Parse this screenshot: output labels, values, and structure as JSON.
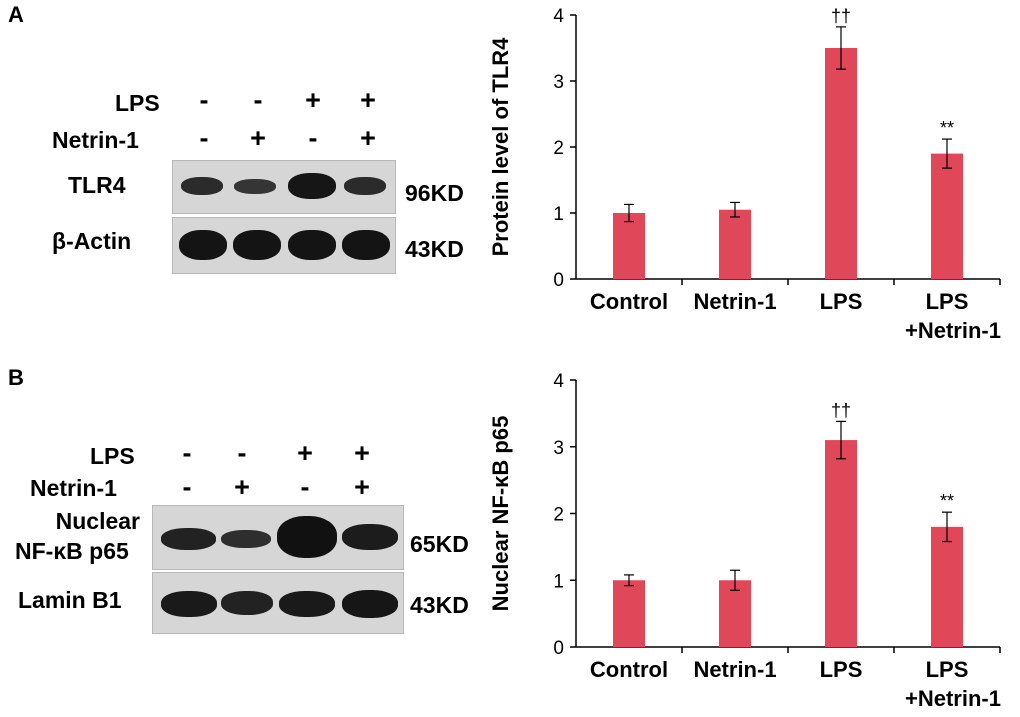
{
  "panels": [
    {
      "letter": "A",
      "treatments": [
        {
          "label": "LPS",
          "marks": [
            "-",
            "-",
            "+",
            "+"
          ]
        },
        {
          "label": "Netrin-1",
          "marks": [
            "-",
            "+",
            "-",
            "+"
          ]
        }
      ],
      "blots": [
        {
          "label": "TLR4",
          "size": "96KD"
        },
        {
          "label": "β-Actin",
          "size": "43KD"
        }
      ]
    },
    {
      "letter": "B",
      "treatments": [
        {
          "label": "LPS",
          "marks": [
            "-",
            "-",
            "+",
            "+"
          ]
        },
        {
          "label": "Netrin-1",
          "marks": [
            "-",
            "+",
            "-",
            "+"
          ]
        }
      ],
      "blots": [
        {
          "label": "Nuclear",
          "label2": "NF-κB p65",
          "size": "65KD"
        },
        {
          "label": "Lamin B1",
          "size": "43KD"
        }
      ]
    }
  ],
  "chart_data": [
    {
      "type": "bar",
      "categories": [
        "Control",
        "Netrin-1",
        "LPS",
        "LPS\n+Netrin-1"
      ],
      "values": [
        1.0,
        1.05,
        3.5,
        1.9
      ],
      "errors": [
        0.13,
        0.11,
        0.32,
        0.22
      ],
      "annotations": [
        "",
        "",
        "††",
        "**"
      ],
      "ylabel": "Protein level of TLR4",
      "ylim": [
        0,
        4
      ],
      "yticks": [
        0,
        1,
        2,
        3,
        4
      ],
      "bar_color": "#e0485a",
      "grid": false
    },
    {
      "type": "bar",
      "categories": [
        "Control",
        "Netrin-1",
        "LPS",
        "LPS\n+Netrin-1"
      ],
      "values": [
        1.0,
        1.0,
        3.1,
        1.8
      ],
      "errors": [
        0.08,
        0.15,
        0.28,
        0.22
      ],
      "annotations": [
        "",
        "",
        "††",
        "**"
      ],
      "ylabel": "Nuclear NF-κB p65",
      "ylim": [
        0,
        4
      ],
      "yticks": [
        0,
        1,
        2,
        3,
        4
      ],
      "bar_color": "#e0485a",
      "grid": false
    }
  ]
}
